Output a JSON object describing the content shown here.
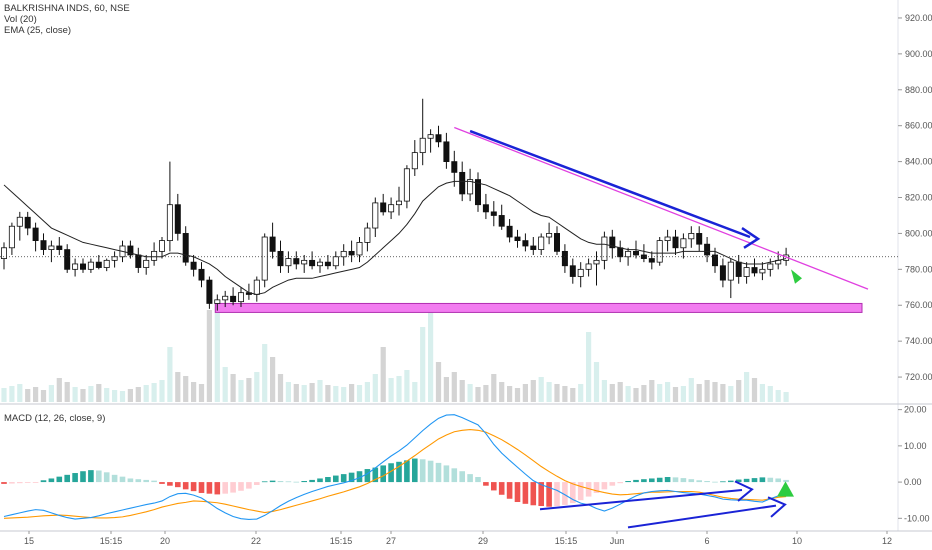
{
  "legend": {
    "symbol": "BALKRISHNA INDS, 60, NSE",
    "vol": "Vol (20)",
    "ema": "EMA (25, close)",
    "macd": "MACD (12, 26, close, 9)"
  },
  "colors": {
    "up": "#26a69a",
    "down": "#111111",
    "ema": "#222222",
    "trendline": "#e040e0",
    "arrow": "#1a23d6",
    "support_zone": "#f27cf0",
    "macd_line": "#2196f3",
    "signal_line": "#ff9800",
    "hist_pos": "#26a69a",
    "hist_pos_light": "#b2dfdb",
    "hist_neg": "#ef5350",
    "hist_neg_light": "#ffcdd2",
    "marker": "#2ecc40"
  },
  "chart_data": [
    {
      "type": "candlestick",
      "title": "BALKRISHNA INDS, 60, NSE",
      "ylim": [
        705,
        930
      ],
      "yticks": [
        "720.00",
        "740.00",
        "760.00",
        "780.00",
        "800.00",
        "820.00",
        "840.00",
        "860.00",
        "880.00",
        "900.00",
        "920.00"
      ],
      "xticks": [
        "15",
        "15:15",
        "20",
        "22",
        "15:15",
        "27",
        "29",
        "15:15",
        "Jun",
        "6",
        "10",
        "12"
      ],
      "current_price": 787,
      "support_zone": [
        756,
        761
      ],
      "candles": [
        [
          786,
          795,
          780,
          792
        ],
        [
          792,
          806,
          788,
          804
        ],
        [
          804,
          812,
          796,
          809
        ],
        [
          809,
          812,
          799,
          803
        ],
        [
          803,
          806,
          790,
          796
        ],
        [
          796,
          800,
          788,
          791
        ],
        [
          791,
          796,
          784,
          793
        ],
        [
          793,
          798,
          788,
          791
        ],
        [
          791,
          794,
          778,
          780
        ],
        [
          780,
          786,
          776,
          783
        ],
        [
          783,
          786,
          778,
          780
        ],
        [
          780,
          786,
          778,
          784
        ],
        [
          784,
          788,
          780,
          781
        ],
        [
          781,
          786,
          779,
          785
        ],
        [
          785,
          790,
          781,
          787
        ],
        [
          787,
          796,
          784,
          793
        ],
        [
          793,
          796,
          786,
          788
        ],
        [
          788,
          792,
          778,
          781
        ],
        [
          781,
          788,
          777,
          785
        ],
        [
          785,
          795,
          782,
          790
        ],
        [
          790,
          798,
          786,
          796
        ],
        [
          796,
          840,
          790,
          816
        ],
        [
          816,
          822,
          796,
          800
        ],
        [
          800,
          804,
          782,
          784
        ],
        [
          784,
          788,
          776,
          780
        ],
        [
          780,
          784,
          770,
          774
        ],
        [
          774,
          776,
          758,
          761
        ],
        [
          761,
          766,
          757,
          763
        ],
        [
          763,
          768,
          759,
          765
        ],
        [
          765,
          770,
          760,
          762
        ],
        [
          762,
          770,
          759,
          767
        ],
        [
          767,
          772,
          763,
          766
        ],
        [
          766,
          776,
          762,
          774
        ],
        [
          774,
          800,
          770,
          798
        ],
        [
          798,
          806,
          786,
          790
        ],
        [
          790,
          796,
          778,
          782
        ],
        [
          782,
          790,
          778,
          786
        ],
        [
          786,
          790,
          780,
          783
        ],
        [
          783,
          788,
          778,
          785
        ],
        [
          785,
          790,
          780,
          782
        ],
        [
          782,
          786,
          778,
          784
        ],
        [
          784,
          788,
          780,
          782
        ],
        [
          782,
          790,
          780,
          787
        ],
        [
          787,
          794,
          782,
          790
        ],
        [
          790,
          796,
          784,
          788
        ],
        [
          788,
          798,
          784,
          795
        ],
        [
          795,
          806,
          790,
          803
        ],
        [
          803,
          820,
          798,
          817
        ],
        [
          817,
          822,
          810,
          812
        ],
        [
          812,
          820,
          808,
          816
        ],
        [
          816,
          826,
          810,
          818
        ],
        [
          818,
          838,
          814,
          836
        ],
        [
          836,
          852,
          832,
          845
        ],
        [
          845,
          875,
          838,
          853
        ],
        [
          853,
          858,
          845,
          855
        ],
        [
          855,
          860,
          848,
          851
        ],
        [
          851,
          856,
          836,
          840
        ],
        [
          840,
          846,
          826,
          834
        ],
        [
          834,
          840,
          818,
          822
        ],
        [
          822,
          836,
          818,
          830
        ],
        [
          830,
          834,
          812,
          816
        ],
        [
          816,
          822,
          808,
          812
        ],
        [
          812,
          818,
          804,
          810
        ],
        [
          810,
          816,
          802,
          804
        ],
        [
          804,
          808,
          795,
          798
        ],
        [
          798,
          802,
          792,
          796
        ],
        [
          796,
          800,
          790,
          793
        ],
        [
          793,
          798,
          788,
          791
        ],
        [
          791,
          800,
          788,
          798
        ],
        [
          798,
          806,
          794,
          800
        ],
        [
          800,
          804,
          788,
          790
        ],
        [
          790,
          794,
          778,
          782
        ],
        [
          782,
          786,
          772,
          776
        ],
        [
          776,
          784,
          770,
          780
        ],
        [
          780,
          786,
          776,
          783
        ],
        [
          783,
          790,
          771,
          785
        ],
        [
          785,
          801,
          780,
          798
        ],
        [
          798,
          802,
          786,
          792
        ],
        [
          792,
          796,
          784,
          787
        ],
        [
          787,
          792,
          782,
          790
        ],
        [
          790,
          796,
          786,
          788
        ],
        [
          788,
          794,
          784,
          786
        ],
        [
          786,
          790,
          780,
          784
        ],
        [
          784,
          798,
          782,
          796
        ],
        [
          796,
          802,
          790,
          798
        ],
        [
          798,
          802,
          788,
          792
        ],
        [
          792,
          800,
          786,
          797
        ],
        [
          797,
          804,
          792,
          800
        ],
        [
          800,
          804,
          790,
          794
        ],
        [
          794,
          798,
          784,
          788
        ],
        [
          788,
          792,
          778,
          782
        ],
        [
          782,
          786,
          770,
          774
        ],
        [
          774,
          786,
          764,
          784
        ],
        [
          784,
          788,
          772,
          776
        ],
        [
          776,
          784,
          772,
          781
        ],
        [
          781,
          786,
          776,
          778
        ],
        [
          778,
          784,
          774,
          780
        ],
        [
          780,
          786,
          776,
          783
        ],
        [
          783,
          790,
          780,
          785
        ],
        [
          785,
          792,
          782,
          788
        ]
      ],
      "ema": [
        827,
        823,
        819,
        815,
        811,
        807,
        803,
        801,
        799,
        797,
        795,
        794,
        793,
        792,
        791,
        790,
        789,
        788,
        787,
        787,
        787,
        789,
        789,
        788,
        787,
        785,
        783,
        780,
        776,
        773,
        770,
        767,
        766,
        767,
        770,
        772,
        774,
        775,
        775,
        775,
        776,
        777,
        778,
        779,
        780,
        781,
        784,
        788,
        792,
        796,
        800,
        805,
        811,
        818,
        822,
        826,
        828,
        829,
        829,
        829,
        828,
        827,
        825,
        823,
        821,
        818,
        815,
        812,
        810,
        809,
        806,
        803,
        800,
        797,
        795,
        794,
        794,
        793,
        792,
        791,
        791,
        790,
        789,
        789,
        789,
        789,
        790,
        790,
        790,
        790,
        790,
        788,
        786,
        784,
        783,
        783,
        783,
        784,
        785,
        786
      ],
      "volume": [
        14,
        16,
        18,
        13,
        15,
        12,
        17,
        24,
        20,
        15,
        13,
        16,
        18,
        14,
        12,
        11,
        13,
        15,
        17,
        19,
        22,
        55,
        30,
        26,
        20,
        18,
        92,
        95,
        35,
        28,
        22,
        24,
        30,
        58,
        45,
        28,
        20,
        18,
        17,
        19,
        22,
        17,
        16,
        15,
        18,
        17,
        20,
        28,
        55,
        24,
        26,
        32,
        20,
        75,
        95,
        40,
        25,
        30,
        22,
        18,
        15,
        17,
        28,
        20,
        16,
        14,
        18,
        22,
        25,
        20,
        18,
        16,
        14,
        18,
        70,
        40,
        22,
        18,
        20,
        16,
        14,
        17,
        22,
        18,
        20,
        15,
        16,
        24,
        18,
        22,
        20,
        18,
        16,
        22,
        30,
        24,
        18,
        16,
        12,
        10
      ]
    },
    {
      "type": "macd",
      "title": "MACD (12, 26, close, 9)",
      "ylim": [
        -13.5,
        21
      ],
      "yticks": [
        "20.00",
        "10.00",
        "0.00",
        "-10.00"
      ],
      "macd": [
        -9.5,
        -9,
        -8.5,
        -8,
        -7.6,
        -7.8,
        -8.5,
        -9.2,
        -9.8,
        -10.2,
        -10,
        -9.8,
        -9.3,
        -8.7,
        -8.2,
        -7.7,
        -7.2,
        -6.7,
        -6.2,
        -5.8,
        -5.2,
        -4,
        -3.2,
        -3.1,
        -3.6,
        -4.4,
        -5.8,
        -7.3,
        -8.5,
        -9.5,
        -10.1,
        -10.3,
        -10.2,
        -9.2,
        -7.9,
        -6.5,
        -5.3,
        -4.3,
        -3.4,
        -2.6,
        -1.9,
        -1.2,
        -0.7,
        -0.2,
        0.4,
        1.2,
        2.3,
        3.9,
        5.6,
        7.2,
        8.6,
        10.2,
        12.2,
        14.2,
        16,
        17.6,
        18.5,
        18.6,
        17.8,
        16.8,
        15.8,
        13.4,
        10.4,
        8,
        6,
        4.1,
        2.2,
        0.4,
        -0.7,
        -1.5,
        -2.3,
        -3.5,
        -4.8,
        -5.8,
        -6.3,
        -7.3,
        -8,
        -7.2,
        -6.1,
        -4.9,
        -3.8,
        -3,
        -2.6,
        -2.4,
        -2.3,
        -2.6,
        -2.9,
        -3.1,
        -3.3,
        -3.7,
        -4.1,
        -4.7,
        -4.9,
        -5,
        -5,
        -5.3,
        -5.5,
        -4.6,
        -3.8,
        -3.5
      ],
      "signal": [
        -10,
        -9.9,
        -9.8,
        -9.7,
        -9.5,
        -9.3,
        -9.2,
        -9.1,
        -9.2,
        -9.4,
        -9.6,
        -9.8,
        -9.9,
        -9.9,
        -9.8,
        -9.6,
        -9.2,
        -8.7,
        -8.2,
        -7.6,
        -6.9,
        -6.4,
        -5.9,
        -5.6,
        -5.2,
        -5.3,
        -5.5,
        -5.7,
        -6.1,
        -6.6,
        -7.1,
        -7.6,
        -8,
        -8.4,
        -8.1,
        -7.6,
        -7,
        -6.4,
        -5.8,
        -5.2,
        -4.6,
        -3.9,
        -3.3,
        -2.7,
        -2,
        -1.3,
        -0.4,
        0.7,
        1.7,
        3,
        4.3,
        5.8,
        7.3,
        8.9,
        10.4,
        11.9,
        13,
        13.9,
        14.3,
        14.5,
        14.3,
        13.8,
        12.8,
        11.7,
        10.4,
        9,
        7.5,
        5.9,
        4.3,
        2.9,
        1.6,
        0.4,
        -0.5,
        -1.2,
        -1.8,
        -2.4,
        -2.9,
        -3.3,
        -3.5,
        -3.4,
        -3.2,
        -3,
        -2.8,
        -2.8,
        -2.7,
        -2.6,
        -2.6,
        -2.6,
        -2.8,
        -3.2,
        -3.7,
        -4.2,
        -4.5,
        -4.7,
        -4.8,
        -4.9,
        -5,
        -4.6,
        -4.2,
        -4
      ],
      "histogram": [
        -0.5,
        -0.4,
        -0.3,
        -0.2,
        -0.1,
        0.5,
        1,
        1.5,
        2,
        2.5,
        3,
        3.3,
        3.2,
        2.7,
        2,
        1.5,
        1,
        0.8,
        0.6,
        0.4,
        -0.5,
        -1,
        -1.4,
        -2,
        -2.5,
        -3,
        -3.2,
        -3.4,
        -3.2,
        -2.9,
        -2.4,
        -1.8,
        -0.8,
        0.2,
        0.4,
        0.3,
        0.2,
        0.1,
        0.3,
        0.6,
        1,
        1.4,
        1.8,
        2.2,
        2.6,
        3,
        3.6,
        4,
        4.6,
        5.2,
        5.6,
        6,
        6.5,
        6.3,
        5.9,
        5.3,
        4.6,
        3.8,
        3,
        2.2,
        1.4,
        -1,
        -2.3,
        -3.5,
        -4.6,
        -5.5,
        -6,
        -6.4,
        -6.6,
        -6.8,
        -6.6,
        -6.3,
        -5.8,
        -5,
        -4,
        -3,
        -2,
        -1,
        -0.3,
        0.3,
        0.6,
        0.8,
        1,
        1.2,
        1.4,
        1.3,
        1.1,
        0.8,
        0.5,
        0.3,
        0.1,
        0.2,
        0.4,
        0.7,
        0.9,
        1.1,
        1.3,
        1.2,
        1,
        0.6
      ]
    }
  ]
}
